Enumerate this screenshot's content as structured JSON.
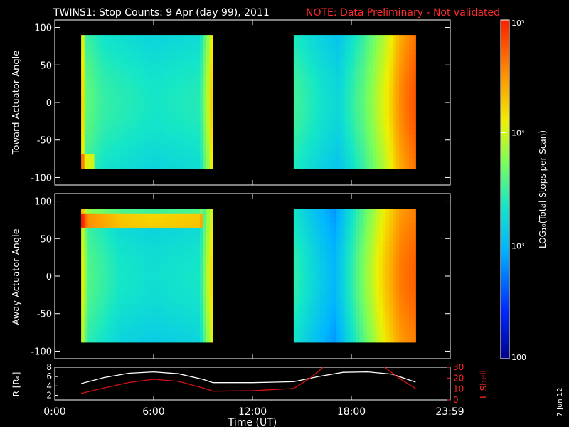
{
  "header": {
    "title": "TWINS1: Stop Counts:  9 Apr (day  99), 2011",
    "note": "NOTE: Data Preliminary - Not validated"
  },
  "footer": {
    "date_stamp": "7 Jun 12"
  },
  "colors": {
    "background": "#000000",
    "frame": "#ffffff",
    "text": "#ffffff",
    "note": "#ff2a2a",
    "orbit_r": "#ffffff",
    "orbit_l": "#d81010"
  },
  "chart_data": [
    {
      "type": "heatmap",
      "ylabel": "Toward Actuator Angle",
      "xlim": [
        0,
        24
      ],
      "ylim": [
        -110,
        110
      ],
      "y_ticks": [
        "100",
        "50",
        "0",
        "-50",
        "-100"
      ],
      "y_tick_values": [
        100,
        50,
        0,
        -50,
        -100
      ],
      "data_extent_y": [
        -88,
        90
      ],
      "data_blocks_hours": [
        [
          1.6,
          9.6
        ],
        [
          14.5,
          21.9
        ]
      ],
      "log_level_profile_block1": [
        {
          "t": 1.6,
          "level": 0.78
        },
        {
          "t": 1.9,
          "level": 0.52
        },
        {
          "t": 3.0,
          "level": 0.46
        },
        {
          "t": 6.0,
          "level": 0.42
        },
        {
          "t": 8.8,
          "level": 0.44
        },
        {
          "t": 9.3,
          "level": 0.62
        },
        {
          "t": 9.6,
          "level": 0.75
        }
      ],
      "log_level_profile_block2": [
        {
          "t": 14.5,
          "level": 0.48
        },
        {
          "t": 16.0,
          "level": 0.42
        },
        {
          "t": 17.2,
          "level": 0.38
        },
        {
          "t": 18.8,
          "level": 0.52
        },
        {
          "t": 20.2,
          "level": 0.68
        },
        {
          "t": 21.0,
          "level": 0.82
        },
        {
          "t": 21.9,
          "level": 0.9
        }
      ],
      "features": [
        "enhanced counts near -85 deg at start of block 1",
        "high counts toward end of block 2"
      ]
    },
    {
      "type": "heatmap",
      "ylabel": "Away Actuator Angle",
      "xlim": [
        0,
        24
      ],
      "ylim": [
        -110,
        110
      ],
      "y_ticks": [
        "100",
        "50",
        "0",
        "-50",
        "-100"
      ],
      "y_tick_values": [
        100,
        50,
        0,
        -50,
        -100
      ],
      "data_extent_y": [
        -88,
        90
      ],
      "data_blocks_hours": [
        [
          1.6,
          9.6
        ],
        [
          14.5,
          21.9
        ]
      ],
      "log_level_profile_block1": [
        {
          "t": 1.6,
          "level": 0.7
        },
        {
          "t": 2.0,
          "level": 0.5
        },
        {
          "t": 4.0,
          "level": 0.42
        },
        {
          "t": 6.0,
          "level": 0.4
        },
        {
          "t": 8.8,
          "level": 0.42
        },
        {
          "t": 9.3,
          "level": 0.62
        },
        {
          "t": 9.6,
          "level": 0.72
        }
      ],
      "log_level_profile_block2": [
        {
          "t": 14.5,
          "level": 0.46
        },
        {
          "t": 16.0,
          "level": 0.36
        },
        {
          "t": 17.0,
          "level": 0.3
        },
        {
          "t": 18.5,
          "level": 0.52
        },
        {
          "t": 20.0,
          "level": 0.72
        },
        {
          "t": 21.0,
          "level": 0.84
        },
        {
          "t": 21.9,
          "level": 0.88
        }
      ],
      "features": [
        "bright red band near +75 deg across block 1"
      ]
    },
    {
      "type": "line",
      "xlabel": "Time (UT)",
      "ylabel": "R [Rₑ]",
      "ylabel_right": "L Shell",
      "x_ticks": [
        "0:00",
        "6:00",
        "12:00",
        "18:00",
        "23:59"
      ],
      "x_tick_values": [
        0,
        6,
        12,
        18,
        23.98
      ],
      "xlim": [
        0,
        24
      ],
      "ylim": [
        1,
        8
      ],
      "y_ticks": [
        "2",
        "4",
        "6",
        "8"
      ],
      "y_tick_values": [
        2,
        4,
        6,
        8
      ],
      "ylim_right": [
        0,
        30
      ],
      "y_ticks_right": [
        "0",
        "10",
        "20",
        "30"
      ],
      "y_tick_values_right": [
        0,
        10,
        20,
        30
      ],
      "series": [
        {
          "name": "R [Rₑ]",
          "x": [
            1.6,
            3.0,
            4.5,
            6.0,
            7.5,
            9.0,
            9.6,
            12.0,
            14.5,
            16.0,
            17.5,
            19.0,
            20.5,
            21.9
          ],
          "y": [
            4.5,
            5.8,
            6.7,
            7.0,
            6.6,
            5.4,
            4.7,
            4.7,
            4.9,
            6.0,
            6.9,
            7.0,
            6.5,
            4.8
          ]
        },
        {
          "name": "L Shell",
          "x": [
            1.6,
            3.0,
            4.5,
            6.0,
            7.5,
            9.0,
            9.6,
            12.0,
            14.5,
            15.5,
            16.3,
            16.8,
            19.5,
            20.0,
            21.0,
            21.9
          ],
          "y": [
            6.0,
            11.0,
            16.0,
            19.0,
            17.0,
            11.0,
            8.0,
            8.5,
            10.5,
            20.0,
            30.0,
            null,
            null,
            30.0,
            19.0,
            10.5
          ]
        }
      ]
    }
  ],
  "colorbar": {
    "label": "LOG₁₀(Total Stops per Scan)",
    "ticks": [
      {
        "label": "10⁵",
        "level": 1.0
      },
      {
        "label": "10⁴",
        "level": 0.667
      },
      {
        "label": "10³",
        "level": 0.333
      },
      {
        "label": "100",
        "level": 0.0
      }
    ]
  }
}
